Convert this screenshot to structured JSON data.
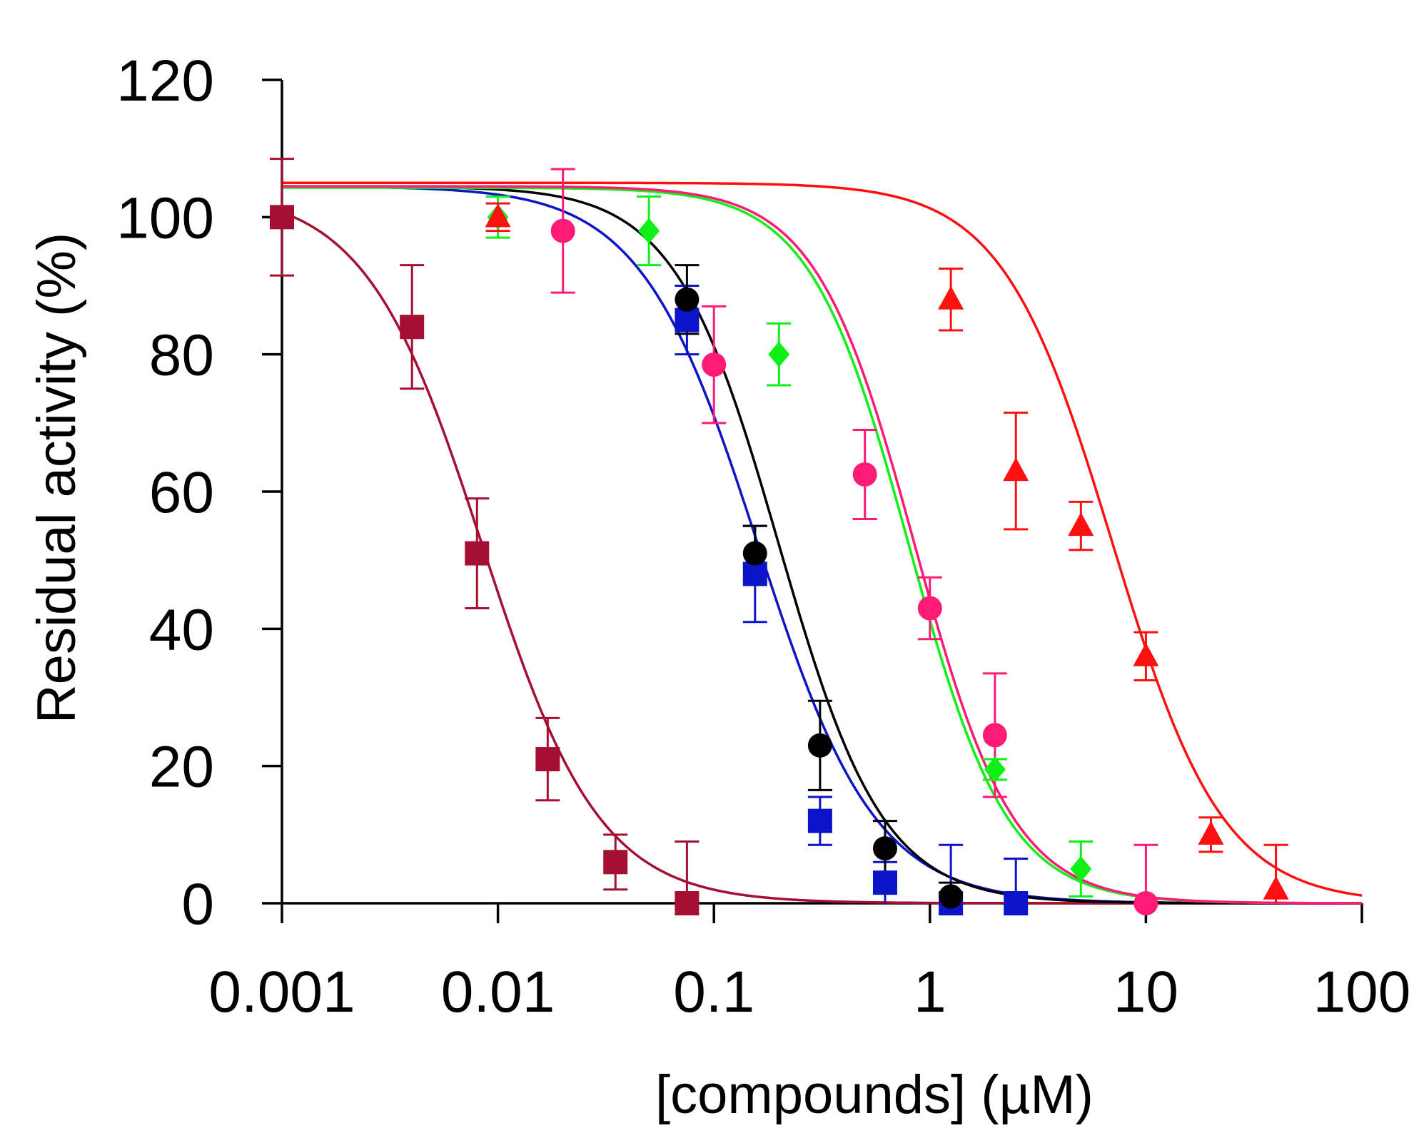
{
  "chart_data": {
    "type": "scatter",
    "title": "",
    "xlabel": "[compounds] (µM)",
    "ylabel": "Residual activity (%)",
    "xscale": "log",
    "xlim": [
      0.001,
      100
    ],
    "ylim": [
      0,
      120
    ],
    "x_ticks": [
      0.001,
      0.01,
      0.1,
      1,
      10,
      100
    ],
    "x_tick_labels": [
      "0.001",
      "0.01",
      "0.1",
      "1",
      "10",
      "100"
    ],
    "y_ticks": [
      0,
      20,
      40,
      60,
      80,
      100,
      120
    ],
    "y_tick_labels": [
      "0",
      "20",
      "40",
      "60",
      "80",
      "100",
      "120"
    ],
    "grid": false,
    "legend": "none",
    "series": [
      {
        "name": "dark-red squares",
        "color": "#a50f32",
        "marker": "square",
        "fit": {
          "top": 104,
          "ic50": 0.0085,
          "hill": 1.6
        },
        "points": [
          {
            "x": 0.001,
            "y": 100,
            "err": 8.5
          },
          {
            "x": 0.004,
            "y": 84,
            "err": 9
          },
          {
            "x": 0.008,
            "y": 51,
            "err": 8
          },
          {
            "x": 0.017,
            "y": 21,
            "err": 6
          },
          {
            "x": 0.035,
            "y": 6,
            "err": 4
          },
          {
            "x": 0.075,
            "y": 0,
            "err": 9
          }
        ]
      },
      {
        "name": "blue squares",
        "color": "#0c14c8",
        "marker": "square",
        "fit": {
          "top": 104.5,
          "ic50": 0.16,
          "hill": 1.6
        },
        "points": [
          {
            "x": 0.075,
            "y": 85,
            "err": 5
          },
          {
            "x": 0.155,
            "y": 48,
            "err": 7
          },
          {
            "x": 0.31,
            "y": 12,
            "err": 3.5
          },
          {
            "x": 0.62,
            "y": 3,
            "err": 3
          },
          {
            "x": 1.25,
            "y": 0,
            "err": 8.5
          },
          {
            "x": 2.5,
            "y": 0,
            "err": 6.5
          }
        ]
      },
      {
        "name": "black circles",
        "color": "#000000",
        "marker": "circle",
        "fit": {
          "top": 104.5,
          "ic50": 0.2,
          "hill": 1.8
        },
        "points": [
          {
            "x": 0.075,
            "y": 88,
            "err": 5
          },
          {
            "x": 0.155,
            "y": 51,
            "err": 4
          },
          {
            "x": 0.31,
            "y": 23,
            "err": 6.5
          },
          {
            "x": 0.62,
            "y": 8,
            "err": 4
          },
          {
            "x": 1.25,
            "y": 1,
            "err": 2
          }
        ]
      },
      {
        "name": "green diamonds",
        "color": "#0ff016",
        "marker": "diamond",
        "fit": {
          "top": 104.3,
          "ic50": 0.8,
          "hill": 1.9
        },
        "points": [
          {
            "x": 0.01,
            "y": 100,
            "err": 3
          },
          {
            "x": 0.05,
            "y": 98,
            "err": 5
          },
          {
            "x": 0.2,
            "y": 80,
            "err": 4.5
          },
          {
            "x": 2.0,
            "y": 19.5,
            "err": 1.5
          },
          {
            "x": 5.0,
            "y": 5,
            "err": 4
          }
        ]
      },
      {
        "name": "pink circles",
        "color": "#ff1a75",
        "marker": "circle",
        "fit": {
          "top": 104.5,
          "ic50": 0.85,
          "hill": 1.9
        },
        "points": [
          {
            "x": 0.02,
            "y": 98,
            "err": 9
          },
          {
            "x": 0.1,
            "y": 78.5,
            "err": 8.5
          },
          {
            "x": 0.5,
            "y": 62.5,
            "err": 6.5
          },
          {
            "x": 1.0,
            "y": 43,
            "err": 4.5
          },
          {
            "x": 2.0,
            "y": 24.5,
            "err": 9
          },
          {
            "x": 10,
            "y": 0,
            "err": 8.5
          }
        ]
      },
      {
        "name": "red triangles",
        "color": "#ff1010",
        "marker": "triangle",
        "fit": {
          "top": 105,
          "ic50": 7.0,
          "hill": 1.7
        },
        "points": [
          {
            "x": 0.01,
            "y": 100,
            "err": 2
          },
          {
            "x": 1.25,
            "y": 88,
            "err": 4.5
          },
          {
            "x": 2.5,
            "y": 63,
            "err": 8.5
          },
          {
            "x": 5.0,
            "y": 55,
            "err": 3.5
          },
          {
            "x": 10,
            "y": 36,
            "err": 3.5
          },
          {
            "x": 20,
            "y": 10,
            "err": 2.5
          },
          {
            "x": 40,
            "y": 2,
            "err": 6.5
          }
        ]
      }
    ]
  }
}
